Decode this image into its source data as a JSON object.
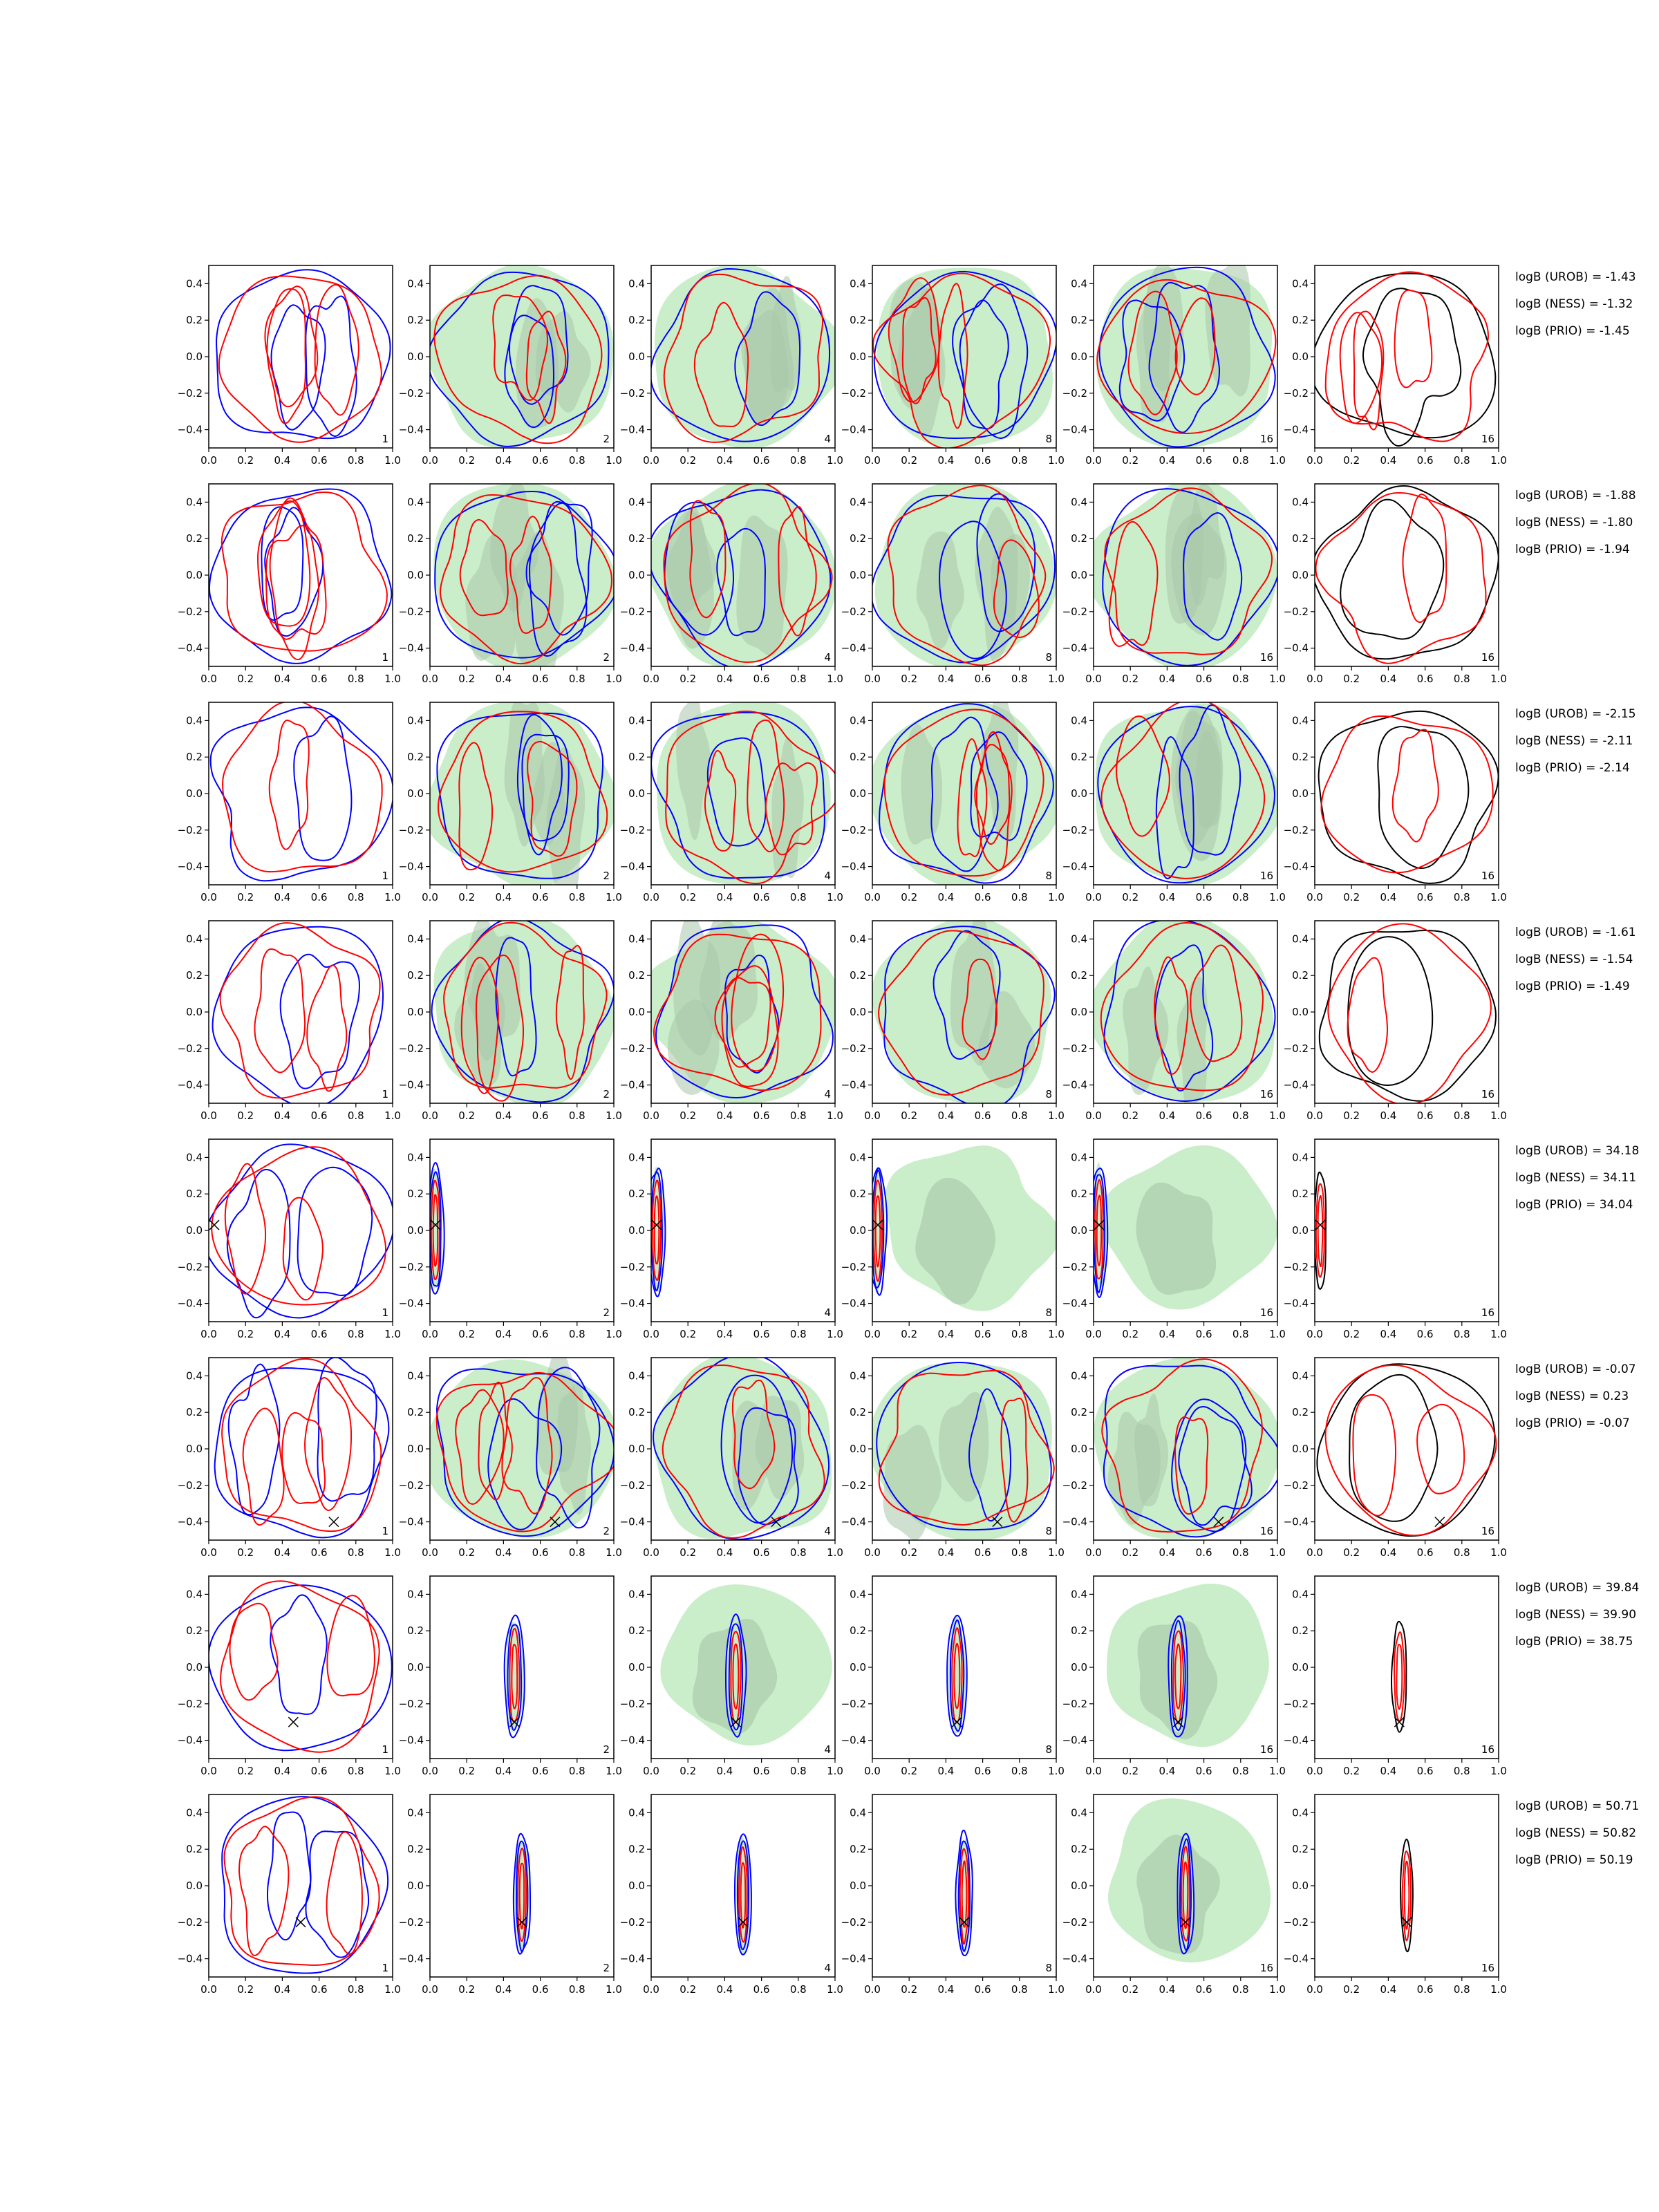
{
  "figure": {
    "colors": {
      "UROB": "#0000ff",
      "NESS": "#ff0000",
      "PRIO": "#000000",
      "fill_light": "#c9eec9",
      "fill_dark": "#a9c7a9"
    },
    "xticks": [
      "0.0",
      "0.2",
      "0.4",
      "0.6",
      "0.8",
      "1.0"
    ],
    "yticks": [
      "0.4",
      "0.2",
      "0.0",
      "−0.2",
      "−0.4"
    ],
    "columns": [
      {
        "label": "1"
      },
      {
        "label": "2"
      },
      {
        "label": "4"
      },
      {
        "label": "8"
      },
      {
        "label": "16"
      },
      {
        "label": "16"
      }
    ],
    "rows": [
      {
        "logb": [
          "logB (UROB) = -1.43",
          "logB (NESS) = -1.32",
          "logB (PRIO) = -1.45"
        ]
      },
      {
        "logb": [
          "logB (UROB) = -1.88",
          "logB (NESS) = -1.80",
          "logB (PRIO) = -1.94"
        ]
      },
      {
        "logb": [
          "logB (UROB) = -2.15",
          "logB (NESS) = -2.11",
          "logB (PRIO) = -2.14"
        ]
      },
      {
        "logb": [
          "logB (UROB) = -1.61",
          "logB (NESS) = -1.54",
          "logB (PRIO) = -1.49"
        ]
      },
      {
        "logb": [
          "logB (UROB) = 34.18",
          "logB (NESS) = 34.11",
          "logB (PRIO) = 34.04"
        ]
      },
      {
        "logb": [
          "logB (UROB) = -0.07",
          "logB (NESS) = 0.23",
          "logB (PRIO) = -0.07"
        ]
      },
      {
        "logb": [
          "logB (UROB) = 39.84",
          "logB (NESS) = 39.90",
          "logB (PRIO) = 38.75"
        ]
      },
      {
        "logb": [
          "logB (UROB) = 50.71",
          "logB (NESS) = 50.82",
          "logB (PRIO) = 50.19"
        ]
      }
    ]
  },
  "chart_data": {
    "type": "contour",
    "xlim": [
      0.0,
      1.0
    ],
    "ylim": [
      -0.5,
      0.5
    ],
    "grid": false,
    "panel_layout": {
      "rows": 8,
      "columns": 6
    },
    "true_parameters": [
      null,
      null,
      null,
      null,
      {
        "x": 0.03,
        "y": 0.03
      },
      {
        "x": 0.68,
        "y": -0.4
      },
      {
        "x": 0.46,
        "y": -0.3
      },
      {
        "x": 0.5,
        "y": -0.2
      }
    ],
    "concentrated_posteriors": [
      null,
      null,
      null,
      null,
      {
        "x": 0.03,
        "y": 0.0,
        "sx": 0.025,
        "sy": 0.32
      },
      null,
      {
        "x": 0.46,
        "y": -0.05,
        "sx": 0.03,
        "sy": 0.3
      },
      {
        "x": 0.5,
        "y": -0.05,
        "sx": 0.025,
        "sy": 0.3
      }
    ]
  }
}
